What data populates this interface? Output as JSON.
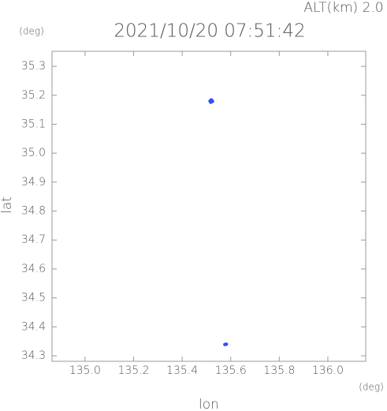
{
  "chart_data": {
    "type": "scatter",
    "annotation": "ALT(km) 2.0",
    "title": "2021/10/20 07:51:42",
    "y_unit": "(deg)",
    "x_unit": "(deg)",
    "xlabel": "lon",
    "ylabel": "lat",
    "x": [
      135.515,
      135.52,
      135.525,
      135.518,
      135.522,
      135.576,
      135.582
    ],
    "y": [
      35.18,
      35.184,
      35.179,
      35.176,
      35.182,
      34.339,
      34.34
    ],
    "color": "#3050ff",
    "xlim": [
      134.864,
      136.156
    ],
    "ylim": [
      34.281,
      35.352
    ],
    "xticks": [
      {
        "value": 135,
        "label": "135.0"
      },
      135.2,
      135.4,
      135.6,
      135.8,
      {
        "value": 136,
        "label": "136.0"
      }
    ],
    "yticks": [
      34.3,
      34.4,
      34.5,
      34.6,
      34.7,
      34.8,
      34.9,
      {
        "value": 35,
        "label": "35.0"
      },
      35.1,
      35.2,
      35.3
    ]
  }
}
